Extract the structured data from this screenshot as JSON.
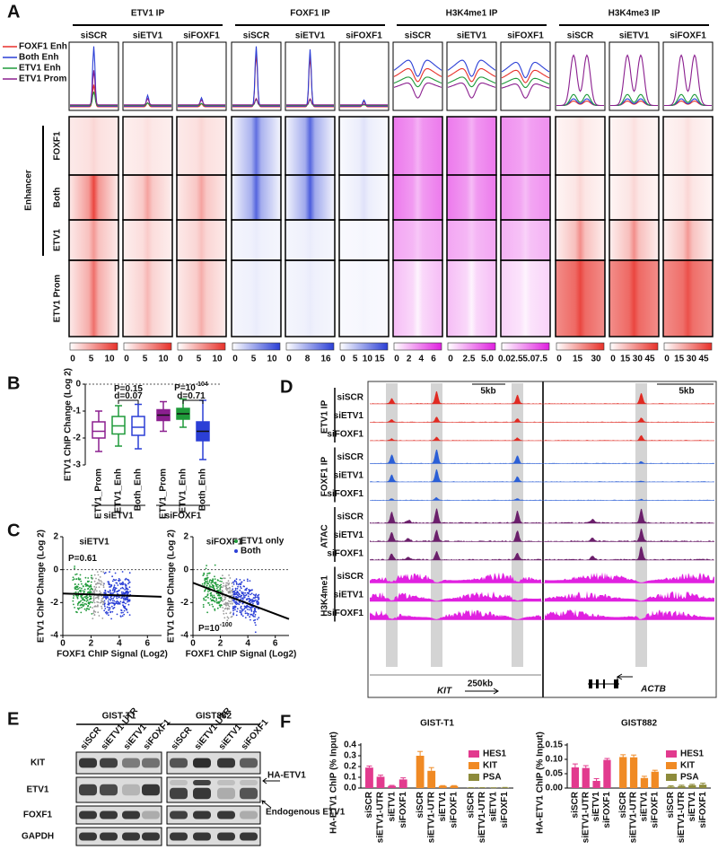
{
  "panel_a": {
    "letter": "A",
    "groups": [
      {
        "title": "ETV1 IP",
        "samples": [
          "siSCR",
          "siETV1",
          "siFOXF1"
        ],
        "scales": [
          [
            "0",
            "5",
            "10"
          ],
          [
            "0",
            "5",
            "10"
          ],
          [
            "0",
            "5",
            "10"
          ]
        ]
      },
      {
        "title": "FOXF1 IP",
        "samples": [
          "siSCR",
          "siETV1",
          "siFOXF1"
        ],
        "scales": [
          [
            "0",
            "5",
            "10"
          ],
          [
            "0",
            "8",
            "16"
          ],
          [
            "0",
            "5",
            "10",
            "15"
          ]
        ]
      },
      {
        "title": "H3K4me1 IP",
        "samples": [
          "siSCR",
          "siETV1",
          "siFOXF1"
        ],
        "scales": [
          [
            "0",
            "2",
            "4",
            "6"
          ],
          [
            "0",
            "2.5",
            "5.0"
          ],
          [
            "0.0",
            "2.5",
            "5.0",
            "7.5"
          ]
        ]
      },
      {
        "title": "H3K4me3 IP",
        "samples": [
          "siSCR",
          "siETV1",
          "siFOXF1"
        ],
        "scales": [
          [
            "0",
            "15",
            "30"
          ],
          [
            "0",
            "15",
            "30",
            "45"
          ],
          [
            "0",
            "15",
            "30",
            "45"
          ]
        ]
      }
    ],
    "legend": [
      {
        "name": "FOXF1 Enh",
        "color": "#e8312a"
      },
      {
        "name": "Both Enh",
        "color": "#2b3fd6"
      },
      {
        "name": "ETV1 Enh",
        "color": "#1f9a3a"
      },
      {
        "name": "ETV1 Prom",
        "color": "#8b1f8f"
      }
    ],
    "row_group": "Enhancer",
    "rows": [
      {
        "label": "FOXF1",
        "color": "#e8312a"
      },
      {
        "label": "Both",
        "color": "#2b3fd6"
      },
      {
        "label": "ETV1",
        "color": "#1f9a3a"
      },
      {
        "label": "ETV1 Prom",
        "color": "#8b1f8f"
      }
    ]
  },
  "panel_b": {
    "letter": "B",
    "y_label": "ETV1 ChIP Change (Log 2)",
    "ylim": [
      -3,
      0
    ],
    "yticks": [
      0,
      -1,
      -2,
      -3
    ],
    "groups": [
      {
        "name": "siETV1",
        "boxes": [
          {
            "label": "ETV1_Prom",
            "color": "#8b1f8f",
            "filled": false,
            "low": -2.5,
            "q1": -2.0,
            "median": -1.75,
            "q3": -1.4,
            "high": -1.0
          },
          {
            "label": "ETV1_Enh",
            "color": "#1f9a3a",
            "filled": false,
            "low": -2.3,
            "q1": -1.85,
            "median": -1.55,
            "q3": -1.2,
            "high": -0.8
          },
          {
            "label": "Both_Enh",
            "color": "#2b3fd6",
            "filled": false,
            "low": -2.4,
            "q1": -1.9,
            "median": -1.6,
            "q3": -1.2,
            "high": -0.75
          }
        ]
      },
      {
        "name": "siFOXF1",
        "boxes": [
          {
            "label": "ETV1_Prom",
            "color": "#8b1f8f",
            "filled": true,
            "low": -1.75,
            "q1": -1.35,
            "median": -1.15,
            "q3": -0.95,
            "high": -0.65
          },
          {
            "label": "ETV1_Enh",
            "color": "#1f9a3a",
            "filled": true,
            "low": -1.6,
            "q1": -1.3,
            "median": -1.1,
            "q3": -0.9,
            "high": -0.55
          },
          {
            "label": "Both_Enh",
            "color": "#2b3fd6",
            "filled": true,
            "low": -2.8,
            "q1": -2.1,
            "median": -1.75,
            "q3": -1.4,
            "high": -0.6
          }
        ]
      }
    ],
    "annotations": [
      {
        "text": "P=0.15"
      },
      {
        "text": "d=0.07"
      },
      {
        "text": "P=10",
        "sup": "-104"
      },
      {
        "text": "d=0.71"
      }
    ]
  },
  "panel_c": {
    "letter": "C",
    "y_label": "ETV1 ChIP Change (Log 2)",
    "x_label": "FOXF1 ChIP Signal (Log2)",
    "xlim": [
      0,
      7
    ],
    "xticks": [
      0,
      2,
      4,
      6
    ],
    "ylim": [
      -4,
      2
    ],
    "yticks": [
      2,
      0,
      -2,
      -4
    ],
    "plots": [
      {
        "title": "siETV1",
        "p": {
          "text": "P=0.61"
        },
        "fit": {
          "x": [
            0,
            7
          ],
          "y": [
            -1.45,
            -1.65
          ]
        }
      },
      {
        "title": "siFOXF1",
        "p": {
          "text": "P=10",
          "sup": "-100"
        },
        "fit": {
          "x": [
            0,
            7
          ],
          "y": [
            -0.8,
            -3.0
          ]
        },
        "legend": [
          {
            "name": "ETV1 only",
            "color": "#1f9a3a"
          },
          {
            "name": "Both",
            "color": "#2b3fd6"
          }
        ]
      }
    ]
  },
  "panel_d": {
    "letter": "D",
    "groups": [
      {
        "label": "ETV1 IP",
        "color": "#e02a22",
        "samples": [
          "siSCR",
          "siETV1",
          "siFOXF1"
        ]
      },
      {
        "label": "FOXF1 IP",
        "color": "#2b5fd6",
        "samples": [
          "siSCR",
          "siETV1",
          "siFOXF1"
        ]
      },
      {
        "label": "ATAC",
        "color": "#6b1f6b",
        "samples": [
          "siSCR",
          "siETV1",
          "siFOXF1"
        ]
      },
      {
        "label": "H3K4me1",
        "color": "#e020e0",
        "samples": [
          "siSCR",
          "siETV1",
          "siFOXF1"
        ]
      }
    ],
    "scale_left": "5kb",
    "scale_right": "5kb",
    "genes": [
      "KIT",
      "ACTB"
    ],
    "gene_scale": "250kb"
  },
  "panel_e": {
    "letter": "E",
    "cell_lines": [
      "GIST-T1",
      "GIST882"
    ],
    "lanes": [
      "siSCR",
      "siETV1-UTR",
      "siETV1",
      "siFOXF1"
    ],
    "proteins": [
      "KIT",
      "ETV1",
      "FOXF1",
      "GAPDH"
    ],
    "arrows": [
      "HA-ETV1",
      "Endogenous ETV1"
    ]
  },
  "panel_f": {
    "letter": "F",
    "y_label": "HA-ETV1 ChIP (% Input)",
    "charts": [
      {
        "title": "GIST-T1",
        "ylim": [
          0,
          0.4
        ],
        "yticks": [
          {
            "value": 0,
            "label": "0.0"
          },
          0.1,
          0.2,
          0.3,
          0.4
        ],
        "categories": [
          "siSCR",
          "siETV1-UTR",
          "siETV1",
          "siFOXF1"
        ],
        "series": [
          {
            "name": "HES1",
            "color": "#e23a8e",
            "values": [
              0.19,
              0.105,
              0.02,
              0.08
            ],
            "errors": [
              0.015,
              0.015,
              0.005,
              0.015
            ]
          },
          {
            "name": "KIT",
            "color": "#f08a24",
            "values": [
              0.3,
              0.16,
              0.02,
              0.02
            ],
            "errors": [
              0.04,
              0.03,
              0.003,
              0.003
            ]
          },
          {
            "name": "PSA",
            "color": "#8d8b3b",
            "values": [
              0.003,
              0.003,
              0.002,
              0.004
            ],
            "errors": [
              0.001,
              0.001,
              0.001,
              0.002
            ]
          }
        ]
      },
      {
        "title": "GIST882",
        "ylim": [
          0,
          0.15
        ],
        "yticks": [
          {
            "value": 0,
            "label": "0.00"
          },
          0.05,
          {
            "value": 0.1,
            "label": "0.10"
          },
          0.15
        ],
        "categories": [
          "siSCR",
          "siETV1-UTR",
          "siETV1",
          "siFOXF1"
        ],
        "series": [
          {
            "name": "HES1",
            "color": "#e23a8e",
            "values": [
              0.072,
              0.07,
              0.025,
              0.098
            ],
            "errors": [
              0.012,
              0.008,
              0.008,
              0.005
            ]
          },
          {
            "name": "KIT",
            "color": "#f08a24",
            "values": [
              0.108,
              0.107,
              0.035,
              0.057
            ],
            "errors": [
              0.008,
              0.008,
              0.006,
              0.005
            ]
          },
          {
            "name": "PSA",
            "color": "#8d8b3b",
            "values": [
              0.005,
              0.007,
              0.01,
              0.012
            ],
            "errors": [
              0.003,
              0.003,
              0.003,
              0.005
            ]
          }
        ]
      }
    ]
  }
}
